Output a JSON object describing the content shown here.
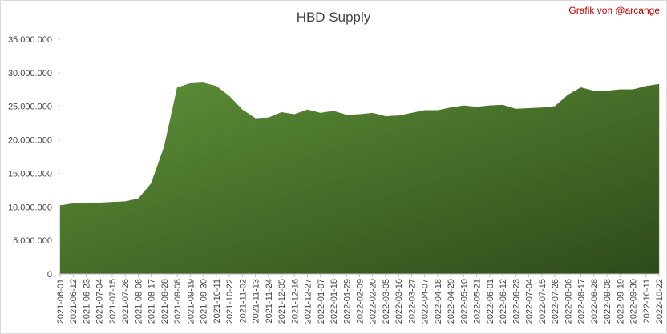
{
  "chart_data": {
    "type": "area",
    "title": "HBD Supply",
    "annotation": "Grafik von @arcange",
    "categories": [
      "2021-06-01",
      "2021-06-12",
      "2021-06-23",
      "2021-07-04",
      "2021-07-15",
      "2021-07-26",
      "2021-08-06",
      "2021-08-17",
      "2021-08-28",
      "2021-09-08",
      "2021-09-19",
      "2021-09-30",
      "2021-10-11",
      "2021-10-22",
      "2021-11-02",
      "2021-11-13",
      "2021-11-24",
      "2021-12-05",
      "2021-12-16",
      "2021-12-27",
      "2022-01-07",
      "2022-01-18",
      "2022-01-29",
      "2022-02-09",
      "2022-02-20",
      "2022-03-05",
      "2022-03-16",
      "2022-03-27",
      "2022-04-07",
      "2022-04-18",
      "2022-04-29",
      "2022-05-10",
      "2022-05-21",
      "2022-06-01",
      "2022-06-12",
      "2022-06-23",
      "2022-07-04",
      "2022-07-15",
      "2022-07-26",
      "2022-08-06",
      "2022-08-17",
      "2022-08-28",
      "2022-09-08",
      "2022-09-19",
      "2022-09-30",
      "2022-10-11",
      "2022-10-22"
    ],
    "values": [
      10200000,
      10500000,
      10500000,
      10600000,
      10700000,
      10800000,
      11200000,
      13500000,
      19000000,
      27800000,
      28400000,
      28500000,
      28000000,
      26500000,
      24500000,
      23200000,
      23300000,
      24100000,
      23800000,
      24500000,
      24000000,
      24300000,
      23700000,
      23800000,
      24000000,
      23500000,
      23600000,
      24000000,
      24400000,
      24400000,
      24800000,
      25100000,
      24900000,
      25100000,
      25200000,
      24600000,
      24700000,
      24800000,
      25000000,
      26700000,
      27800000,
      27300000,
      27300000,
      27500000,
      27500000,
      28000000,
      28300000
    ],
    "color": "#4f7f2e",
    "ylim": [
      0,
      35000000
    ],
    "yticks": [
      0,
      {
        "value": 5000000,
        "label": "5.000.000"
      },
      {
        "value": 10000000,
        "label": "10.000.000"
      },
      {
        "value": 15000000,
        "label": "15.000.000"
      },
      {
        "value": 20000000,
        "label": "20.000.000"
      },
      {
        "value": 25000000,
        "label": "25.000.000"
      },
      {
        "value": 30000000,
        "label": "30.000.000"
      },
      {
        "value": 35000000,
        "label": "35.000.000"
      }
    ],
    "grid": false
  }
}
